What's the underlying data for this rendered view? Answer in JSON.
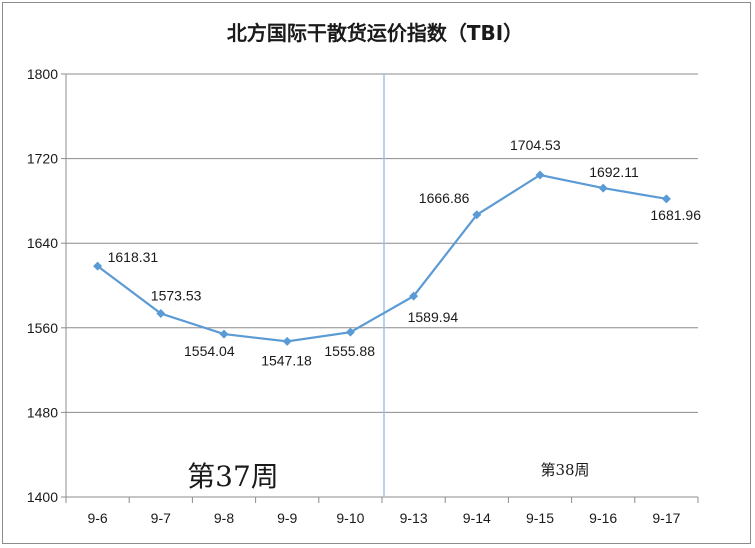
{
  "chart_data": {
    "type": "line",
    "title": "北方国际干散货运价指数（TBI）",
    "xlabel": "",
    "ylabel": "",
    "categories": [
      "9-6",
      "9-7",
      "9-8",
      "9-9",
      "9-10",
      "9-13",
      "9-14",
      "9-15",
      "9-16",
      "9-17"
    ],
    "series": [
      {
        "values": [
          1618.31,
          1573.53,
          1554.04,
          1547.18,
          1555.88,
          1589.94,
          1666.86,
          1704.53,
          1692.11,
          1681.96
        ],
        "labels": [
          "1618.31",
          "1573.53",
          "1554.04",
          "1547.18",
          "1555.88",
          "1589.94",
          "1666.86",
          "1704.53",
          "1692.11",
          "1681.96"
        ],
        "color": "#5b9bd5"
      }
    ],
    "ylim": [
      1400,
      1800
    ],
    "yticks": [
      "1400",
      "1480",
      "1560",
      "1640",
      "1720",
      "1800"
    ],
    "grid": true,
    "legend": "none",
    "annotations": [
      {
        "text": "第37周",
        "style": "large"
      },
      {
        "text": "第38周",
        "style": "small"
      }
    ],
    "separator_after_category": "9-10",
    "gridline_color": "#8c8c8c",
    "separator_color": "#9dc3e6"
  }
}
